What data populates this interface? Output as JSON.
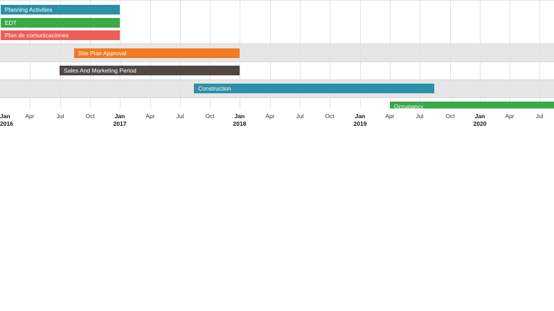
{
  "chart_data": {
    "type": "gantt",
    "title": "",
    "x_axis": {
      "start": "2016-01",
      "end": "2020-09",
      "ticks": [
        {
          "label": "Jan",
          "year": "2016",
          "major": true
        },
        {
          "label": "Apr",
          "major": false
        },
        {
          "label": "Jul",
          "major": false
        },
        {
          "label": "Oct",
          "major": false
        },
        {
          "label": "Jan",
          "year": "2017",
          "major": true
        },
        {
          "label": "Apr",
          "major": false
        },
        {
          "label": "Jul",
          "major": false
        },
        {
          "label": "Oct",
          "major": false
        },
        {
          "label": "Jan",
          "year": "2018",
          "major": true
        },
        {
          "label": "Apr",
          "major": false
        },
        {
          "label": "Jul",
          "major": false
        },
        {
          "label": "Oct",
          "major": false
        },
        {
          "label": "Jan",
          "year": "2019",
          "major": true
        },
        {
          "label": "Apr",
          "major": false
        },
        {
          "label": "Jul",
          "major": false
        },
        {
          "label": "Oct",
          "major": false
        },
        {
          "label": "Jan",
          "year": "2020",
          "major": true
        },
        {
          "label": "Apr",
          "major": false
        },
        {
          "label": "Jul",
          "major": false
        }
      ]
    },
    "tasks": [
      {
        "name": "Planning Activities",
        "start": "2016-01",
        "end": "2017-01",
        "color": "#2e8fa8",
        "row": 0
      },
      {
        "name": "EDT",
        "start": "2016-01",
        "end": "2017-01",
        "color": "#3aa948",
        "row": 0
      },
      {
        "name": "Plan de comunicaciones",
        "start": "2016-01",
        "end": "2017-01",
        "color": "#ed5d57",
        "row": 0
      },
      {
        "name": "Site Plan Approval",
        "start": "2016-08-15",
        "end": "2018-01",
        "color": "#f17a22",
        "row": 1
      },
      {
        "name": "Sales And Marketing Period",
        "start": "2016-07",
        "end": "2018-01",
        "color": "#4f4843",
        "row": 2
      },
      {
        "name": "Construction",
        "start": "2017-08",
        "end": "2019-08-15",
        "color": "#2e8fa8",
        "row": 3
      },
      {
        "name": "Occupancy",
        "start": "2019-04",
        "end": "2020-09+",
        "color": "#3aa948",
        "row": 4
      }
    ]
  }
}
